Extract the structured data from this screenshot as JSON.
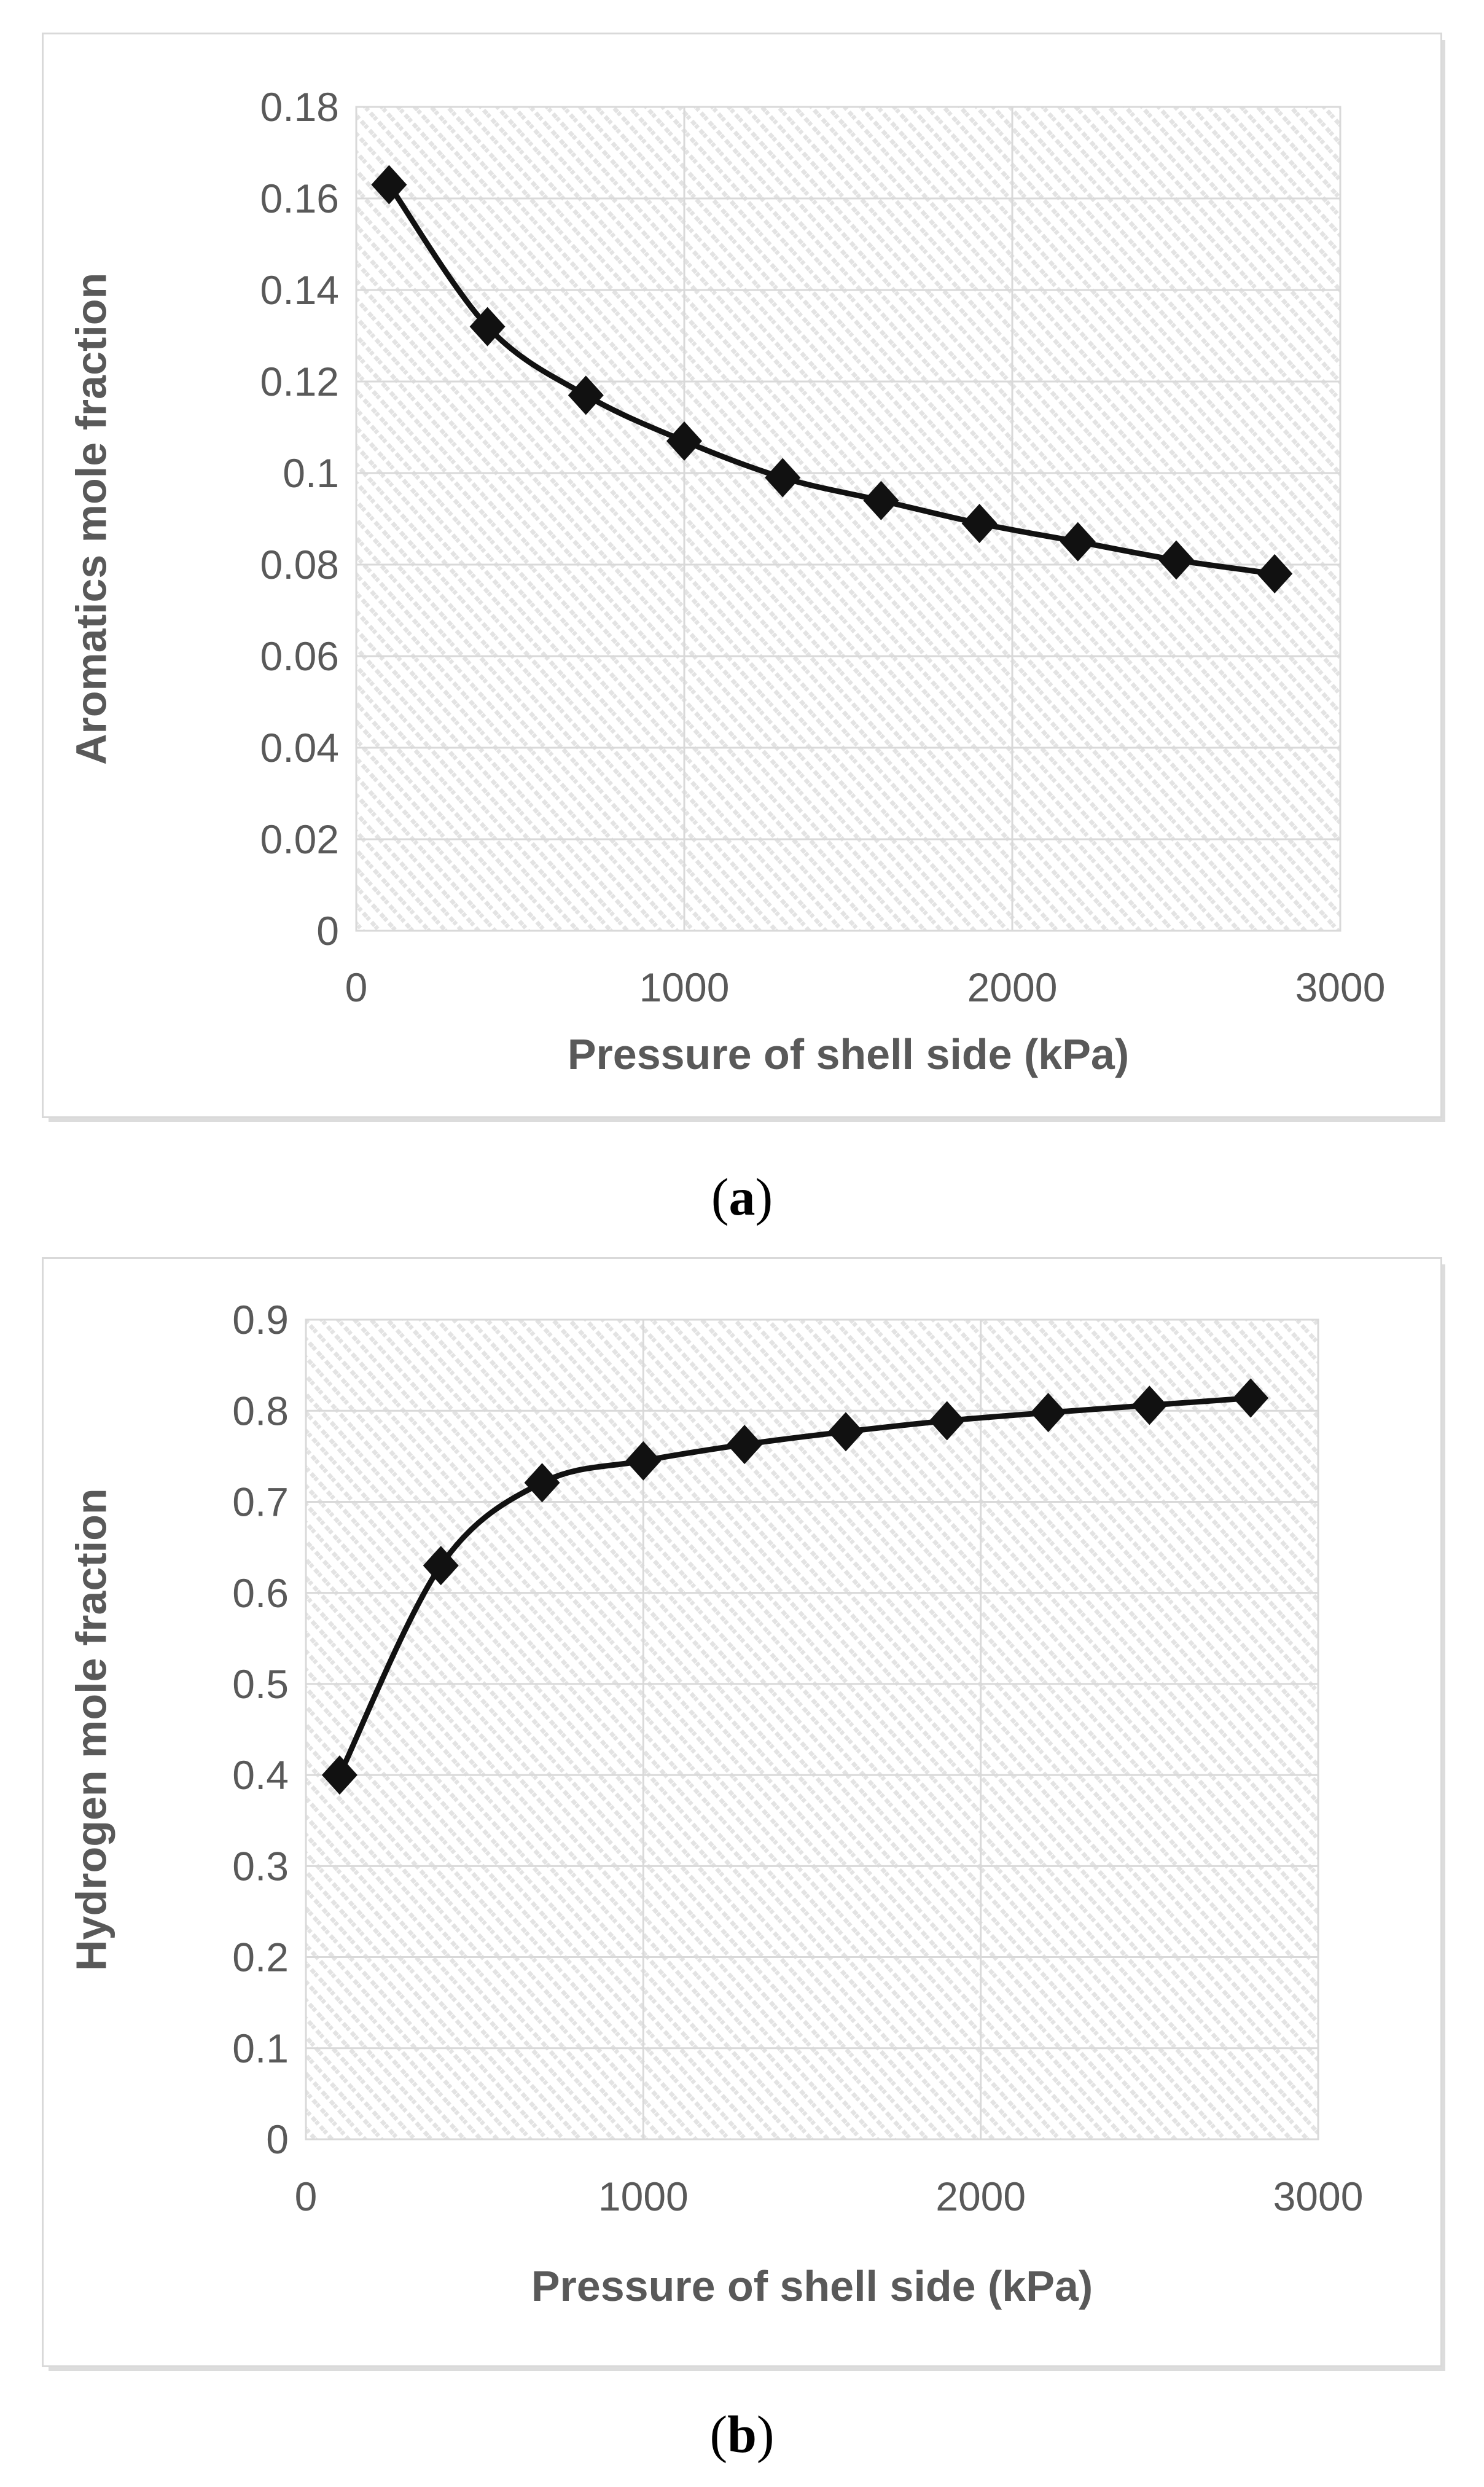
{
  "figure": {
    "captions": {
      "a": {
        "open": "(",
        "letter": "a",
        "close": ")"
      },
      "b": {
        "open": "(",
        "letter": "b",
        "close": ")"
      }
    }
  },
  "colors": {
    "axis_text": "#595959",
    "gridline": "#d9d9d9",
    "plot_border": "#d9d9d9",
    "hatch": "#e3e3e3",
    "series": "#111111",
    "panel_border": "#d9d9d9",
    "background": "#ffffff"
  },
  "chart_data": [
    {
      "id": "a",
      "type": "line",
      "title": "",
      "xlabel": "Pressure of shell side (kPa)",
      "ylabel": "Aromatics mole fraction",
      "x": [
        100,
        400,
        700,
        1000,
        1300,
        1600,
        1900,
        2200,
        2500,
        2800
      ],
      "y": [
        0.163,
        0.132,
        0.117,
        0.107,
        0.099,
        0.094,
        0.089,
        0.085,
        0.081,
        0.078
      ],
      "xlim": [
        0,
        3000
      ],
      "ylim": [
        0,
        0.18
      ],
      "xtick_values": [
        0,
        1000,
        2000,
        3000
      ],
      "xtick_labels": [
        "0",
        "1000",
        "2000",
        "3000"
      ],
      "ytick_values": [
        0,
        0.02,
        0.04,
        0.06,
        0.08,
        0.1,
        0.12,
        0.14,
        0.16,
        0.18
      ],
      "ytick_labels": [
        "0",
        "0.02",
        "0.04",
        "0.06",
        "0.08",
        "0.1",
        "0.12",
        "0.14",
        "0.16",
        "0.18"
      ],
      "marker": "diamond",
      "line_smooth": true,
      "grid": true,
      "legend": null
    },
    {
      "id": "b",
      "type": "line",
      "title": "",
      "xlabel": "Pressure of shell side (kPa)",
      "ylabel": "Hydrogen mole fraction",
      "x": [
        100,
        400,
        700,
        1000,
        1300,
        1600,
        1900,
        2200,
        2500,
        2800
      ],
      "y": [
        0.4,
        0.63,
        0.721,
        0.745,
        0.763,
        0.777,
        0.789,
        0.798,
        0.806,
        0.814
      ],
      "xlim": [
        0,
        3000
      ],
      "ylim": [
        0,
        0.9
      ],
      "xtick_values": [
        0,
        1000,
        2000,
        3000
      ],
      "xtick_labels": [
        "0",
        "1000",
        "2000",
        "3000"
      ],
      "ytick_values": [
        0,
        0.1,
        0.2,
        0.3,
        0.4,
        0.5,
        0.6,
        0.7,
        0.8,
        0.9
      ],
      "ytick_labels": [
        "0",
        "0.1",
        "0.2",
        "0.3",
        "0.4",
        "0.5",
        "0.6",
        "0.7",
        "0.8",
        "0.9"
      ],
      "marker": "diamond",
      "line_smooth": true,
      "grid": true,
      "legend": null
    }
  ]
}
